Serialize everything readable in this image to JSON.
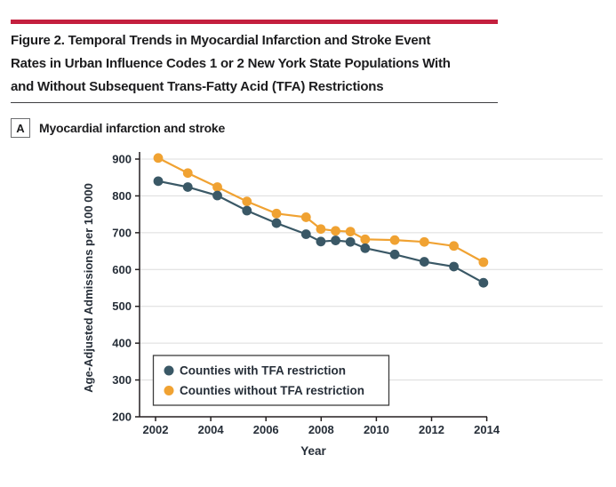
{
  "figure": {
    "accent_color": "#c41f3e",
    "title_lines": [
      "Figure 2. Temporal Trends in Myocardial Infarction and Stroke Event",
      "Rates in Urban Influence Codes 1 or 2 New York State Populations With",
      "and Without Subsequent Trans-Fatty Acid (TFA) Restrictions"
    ],
    "panel_label": "A",
    "panel_title": "Myocardial infarction and stroke"
  },
  "chart_data": {
    "type": "line",
    "x": [
      2002,
      2003,
      2004,
      2005,
      2006,
      2007,
      2007.5,
      2008,
      2008.5,
      2009,
      2010,
      2011,
      2012,
      2013
    ],
    "series": [
      {
        "name": "Counties with TFA restriction",
        "color": "#3a5866",
        "values": [
          840,
          824,
          801,
          760,
          726,
          696,
          676,
          679,
          675,
          658,
          641,
          621,
          608,
          564
        ]
      },
      {
        "name": "Counties without TFA restriction",
        "color": "#f0a232",
        "values": [
          903,
          862,
          824,
          785,
          752,
          742,
          710,
          705,
          703,
          682,
          680,
          675,
          664,
          620
        ]
      }
    ],
    "xlabel": "Year",
    "ylabel": "Age-Adjusted Admissions per 100 000",
    "ylim": [
      200,
      900
    ],
    "ytick_step": 100,
    "xticks": [
      2002,
      2004,
      2006,
      2008,
      2010,
      2012,
      2014
    ],
    "grid": true,
    "gridline_color": "#dcdcdc",
    "axis_color": "#231f20",
    "legend_position": "lower-left",
    "legend_border_color": "#3d3d3d"
  }
}
